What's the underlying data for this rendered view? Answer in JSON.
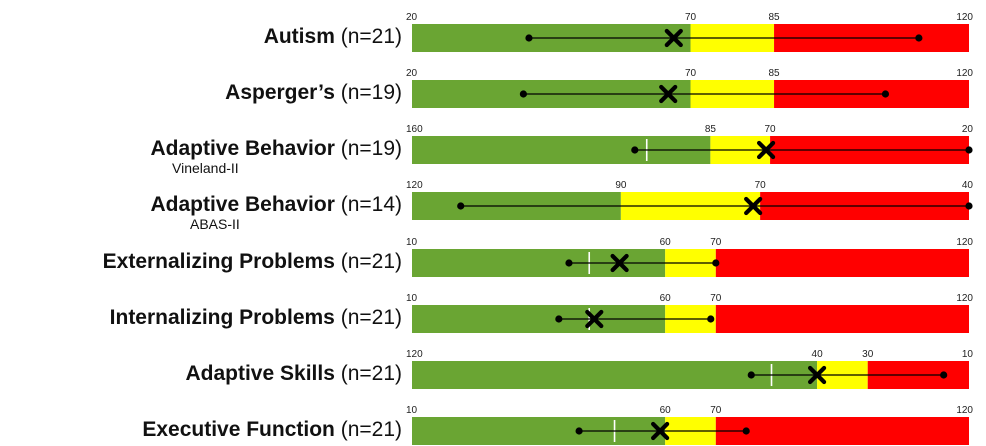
{
  "chart_data": {
    "type": "range-scale",
    "colors": {
      "normal": "#6aa533",
      "borderline": "#ffff00",
      "clinical": "#ff0000",
      "marker": "#000000",
      "median_line": "#ffffff"
    },
    "rows": [
      {
        "name": "Autism",
        "n_label": "(n=21)",
        "subtitle": "",
        "scale_min": 20,
        "scale_max": 120,
        "band_1": 70,
        "band_2": 85,
        "ticks": [
          "20",
          "70",
          "85",
          "120"
        ],
        "range_low": 41,
        "range_high": 111,
        "mean": 67,
        "median": null
      },
      {
        "name": "Asperger’s",
        "n_label": "(n=19)",
        "subtitle": "",
        "scale_min": 20,
        "scale_max": 120,
        "band_1": 70,
        "band_2": 85,
        "ticks": [
          "20",
          "70",
          "85",
          "120"
        ],
        "range_low": 40,
        "range_high": 105,
        "mean": 66,
        "median": null
      },
      {
        "name": "Adaptive Behavior",
        "n_label": "(n=19)",
        "subtitle": "Vineland-II",
        "scale_min": 160,
        "scale_max": 20,
        "band_1": 85,
        "band_2": 70,
        "ticks": [
          "160",
          "85",
          "70",
          "20"
        ],
        "range_low": 20,
        "range_high": 104,
        "mean": 71,
        "median": 101
      },
      {
        "name": "Adaptive Behavior",
        "n_label": "(n=14)",
        "subtitle": "ABAS-II",
        "scale_min": 120,
        "scale_max": 40,
        "band_1": 90,
        "band_2": 70,
        "ticks": [
          "120",
          "90",
          "70",
          "40"
        ],
        "range_low": 40,
        "range_high": 113,
        "mean": 71,
        "median": null
      },
      {
        "name": "Externalizing Problems",
        "n_label": "(n=21)",
        "subtitle": "",
        "scale_min": 10,
        "scale_max": 120,
        "band_1": 60,
        "band_2": 70,
        "ticks": [
          "10",
          "60",
          "70",
          "120"
        ],
        "range_low": 41,
        "range_high": 70,
        "mean": 51,
        "median": 45
      },
      {
        "name": "Internalizing Problems",
        "n_label": "(n=21)",
        "subtitle": "",
        "scale_min": 10,
        "scale_max": 120,
        "band_1": 60,
        "band_2": 70,
        "ticks": [
          "10",
          "60",
          "70",
          "120"
        ],
        "range_low": 39,
        "range_high": 69,
        "mean": 46,
        "median": 45
      },
      {
        "name": "Adaptive Skills",
        "n_label": "(n=21)",
        "subtitle": "",
        "scale_min": 120,
        "scale_max": 10,
        "band_1": 40,
        "band_2": 30,
        "ticks": [
          "120",
          "40",
          "30",
          "10"
        ],
        "range_low": 15,
        "range_high": 53,
        "mean": 40,
        "median": 49
      },
      {
        "name": "Executive Function",
        "n_label": "(n=21)",
        "subtitle": "",
        "scale_min": 10,
        "scale_max": 120,
        "band_1": 60,
        "band_2": 70,
        "ticks": [
          "10",
          "60",
          "70",
          "120"
        ],
        "range_low": 43,
        "range_high": 76,
        "mean": 59,
        "median": 50
      }
    ]
  }
}
